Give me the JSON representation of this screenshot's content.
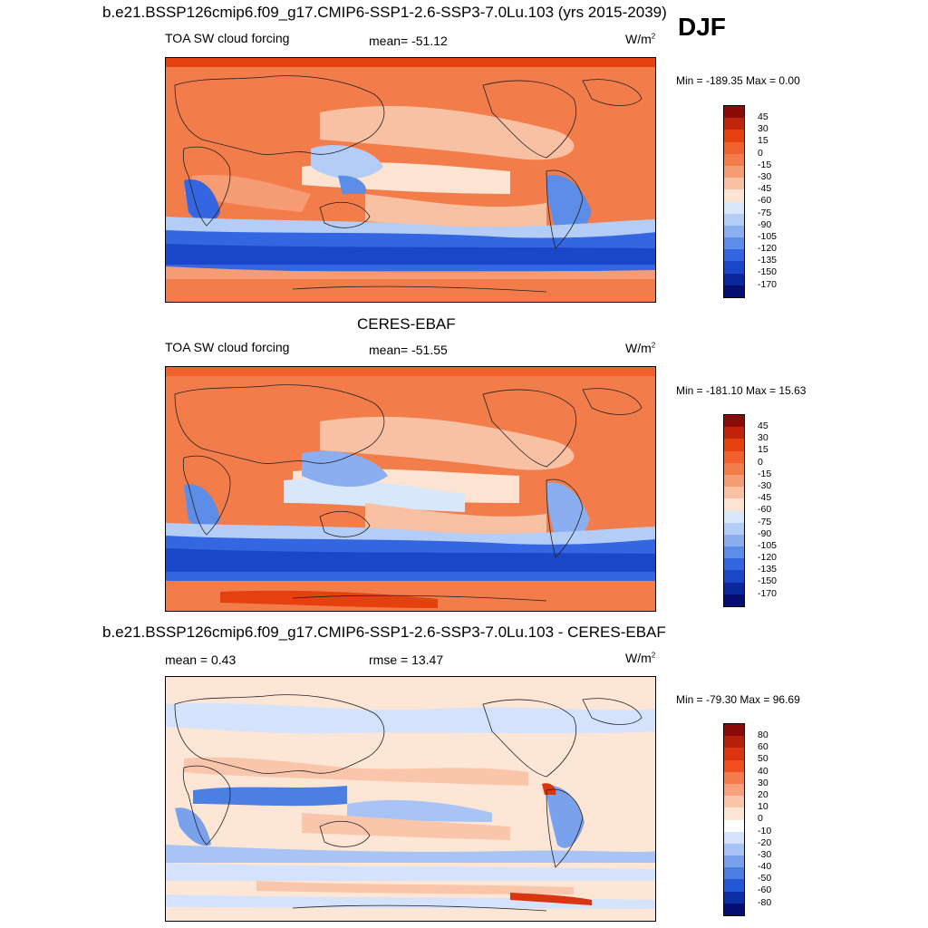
{
  "season": "DJF",
  "panels": [
    {
      "header": "b.e21.BSSP126cmip6.f09_g17.CMIP6-SSP1-2.6-SSP3-7.0Lu.103 (yrs 2015-2039)",
      "variable": "TOA SW cloud forcing",
      "stat": "mean= -51.12",
      "units": "W/m",
      "units_sup": "2",
      "minmax": "Min = -189.35 Max =   0.00",
      "colorbar_labels": [
        "45",
        "30",
        "15",
        "0",
        "-15",
        "-30",
        "-45",
        "-60",
        "-75",
        "-90",
        "-105",
        "-120",
        "-135",
        "-150",
        "-170"
      ],
      "colorbar_colors": [
        "#8b0a0a",
        "#c0240c",
        "#e5410f",
        "#f0612e",
        "#f27d4b",
        "#f59c74",
        "#f8c1a3",
        "#fde4d2",
        "#d9e7fb",
        "#b4cdf6",
        "#8aaef0",
        "#5c8de8",
        "#3366e0",
        "#1a46c8",
        "#0b279b",
        "#050d73"
      ]
    },
    {
      "header": "CERES-EBAF",
      "variable": "TOA SW cloud forcing",
      "stat": "mean= -51.55",
      "units": "W/m",
      "units_sup": "2",
      "minmax": "Min = -181.10 Max =  15.63",
      "colorbar_labels": [
        "45",
        "30",
        "15",
        "0",
        "-15",
        "-30",
        "-45",
        "-60",
        "-75",
        "-90",
        "-105",
        "-120",
        "-135",
        "-150",
        "-170"
      ],
      "colorbar_colors": [
        "#8b0a0a",
        "#c0240c",
        "#e5410f",
        "#f0612e",
        "#f27d4b",
        "#f59c74",
        "#f8c1a3",
        "#fde4d2",
        "#d9e7fb",
        "#b4cdf6",
        "#8aaef0",
        "#5c8de8",
        "#3366e0",
        "#1a46c8",
        "#0b279b",
        "#050d73"
      ]
    },
    {
      "header": "b.e21.BSSP126cmip6.f09_g17.CMIP6-SSP1-2.6-SSP3-7.0Lu.103 - CERES-EBAF",
      "variable": "mean =   0.43",
      "stat": "rmse =  13.47",
      "units": "W/m",
      "units_sup": "2",
      "minmax": "Min = -79.30 Max =  96.69",
      "colorbar_labels": [
        "80",
        "60",
        "50",
        "40",
        "30",
        "20",
        "10",
        "0",
        "-10",
        "-20",
        "-30",
        "-40",
        "-50",
        "-60",
        "-80"
      ],
      "colorbar_colors": [
        "#8b0a0a",
        "#b3200c",
        "#d9360f",
        "#f04e1c",
        "#f57a4c",
        "#f8a07c",
        "#fac6ab",
        "#fde6d6",
        "#ffffff",
        "#d4e3fb",
        "#a8c4f4",
        "#7aa2ec",
        "#4c7fe2",
        "#2457d4",
        "#0d2fa6",
        "#050d73"
      ]
    }
  ]
}
